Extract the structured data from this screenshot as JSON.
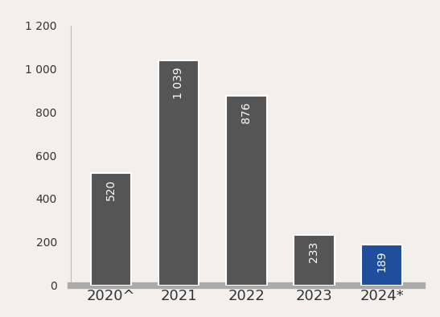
{
  "chart_data": {
    "type": "bar",
    "categories": [
      "2020^",
      "2021",
      "2022",
      "2023",
      "2024*"
    ],
    "values": [
      520,
      1039,
      876,
      233,
      189
    ],
    "value_labels": [
      "520",
      "1 039",
      "876",
      "233",
      "189"
    ],
    "colors": [
      "#555555",
      "#555555",
      "#555555",
      "#555555",
      "#1f4e9c"
    ],
    "ylim": [
      0,
      1200
    ],
    "yticks": [
      0,
      200,
      400,
      600,
      800,
      {
        "value": 1000,
        "label": "1 000"
      },
      {
        "value": 1200,
        "label": "1 200"
      }
    ],
    "grid": false,
    "data_labels": true
  }
}
